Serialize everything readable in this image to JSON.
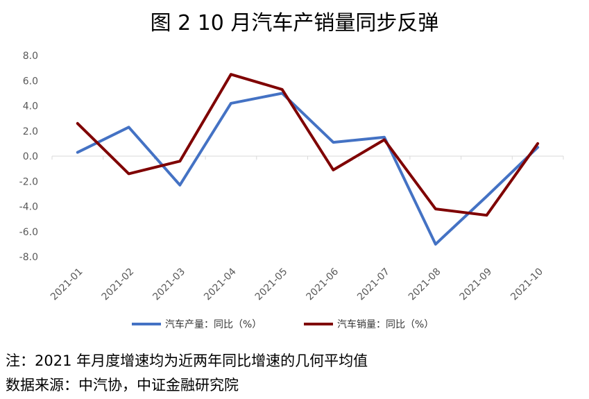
{
  "title": "图 2 10 月汽车产销量同步反弹",
  "chart_data": {
    "type": "line",
    "title": "图 2 10 月汽车产销量同步反弹",
    "xlabel": "",
    "ylabel": "",
    "categories": [
      "2021-01",
      "2021-02",
      "2021-03",
      "2021-04",
      "2021-05",
      "2021-06",
      "2021-07",
      "2021-08",
      "2021-09",
      "2021-10"
    ],
    "ylim": [
      -8,
      8
    ],
    "yticks": [
      "8.0",
      "6.0",
      "4.0",
      "2.0",
      "0.0",
      "-2.0",
      "-4.0",
      "-6.0",
      "-8.0"
    ],
    "grid": false,
    "legend_position": "bottom",
    "series": [
      {
        "name": "汽车产量：同比（%）",
        "color": "#4472C4",
        "values": [
          0.3,
          2.3,
          -2.3,
          4.2,
          5.0,
          1.1,
          1.5,
          -7.0,
          -3.2,
          0.7
        ]
      },
      {
        "name": "汽车销量：同比（%）",
        "color": "#7F0000",
        "values": [
          2.6,
          -1.4,
          -0.4,
          6.5,
          5.3,
          -1.1,
          1.3,
          -4.2,
          -4.7,
          1.0
        ]
      }
    ]
  },
  "footnote": "注：2021 年月度增速均为近两年同比增速的几何平均值",
  "source": "数据来源：中汽协，中证金融研究院"
}
